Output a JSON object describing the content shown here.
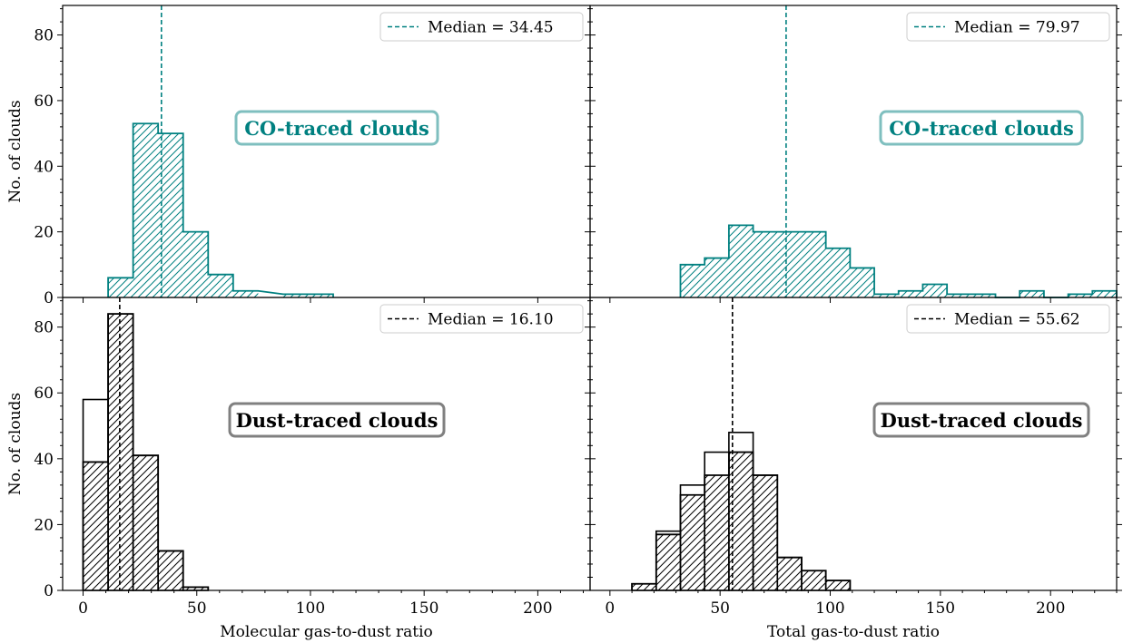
{
  "colors": {
    "teal": "#008080",
    "teal_box_edge": "#7fbfbf",
    "black": "#000000",
    "gray_box_edge": "#808080",
    "legend_edge": "#cccccc"
  },
  "chart_data": [
    {
      "id": "molecular-co",
      "type": "histogram",
      "color": "#008080",
      "hatched": true,
      "xlim": [
        -9,
        223
      ],
      "ylim": [
        0,
        89
      ],
      "xticks": [
        0,
        50,
        100,
        150,
        200
      ],
      "yticks": [
        0,
        20,
        40,
        60,
        80
      ],
      "xlabel": "",
      "ylabel": "No. of clouds",
      "grid": false,
      "legend": "Median = 34.45",
      "legend_position": "top-right",
      "median": 34.45,
      "annotation": "CO-traced clouds",
      "bins": [
        {
          "x0": 11,
          "x1": 22,
          "count": 6
        },
        {
          "x0": 22,
          "x1": 33,
          "count": 53
        },
        {
          "x0": 33,
          "x1": 44,
          "count": 50
        },
        {
          "x0": 44,
          "x1": 55,
          "count": 20
        },
        {
          "x0": 55,
          "x1": 66,
          "count": 7
        },
        {
          "x0": 66,
          "x1": 77,
          "count": 2
        },
        {
          "x0": 88,
          "x1": 99,
          "count": 1
        },
        {
          "x0": 99,
          "x1": 110,
          "count": 1
        }
      ]
    },
    {
      "id": "total-co",
      "type": "histogram",
      "color": "#008080",
      "hatched": true,
      "xlim": [
        -9,
        230
      ],
      "ylim": [
        0,
        89
      ],
      "xticks": [
        0,
        50,
        100,
        150,
        200
      ],
      "yticks": [
        0,
        20,
        40,
        60,
        80
      ],
      "xlabel": "",
      "ylabel": "",
      "grid": false,
      "legend": "Median = 79.97",
      "legend_position": "top-right",
      "median": 79.97,
      "annotation": "CO-traced clouds",
      "bins": [
        {
          "x0": 32,
          "x1": 43,
          "count": 10
        },
        {
          "x0": 43,
          "x1": 54,
          "count": 12
        },
        {
          "x0": 54,
          "x1": 65,
          "count": 22
        },
        {
          "x0": 65,
          "x1": 76,
          "count": 20
        },
        {
          "x0": 76,
          "x1": 87,
          "count": 20
        },
        {
          "x0": 87,
          "x1": 98,
          "count": 20
        },
        {
          "x0": 98,
          "x1": 109,
          "count": 15
        },
        {
          "x0": 109,
          "x1": 120,
          "count": 9
        },
        {
          "x0": 120,
          "x1": 131,
          "count": 1
        },
        {
          "x0": 131,
          "x1": 142,
          "count": 2
        },
        {
          "x0": 142,
          "x1": 153,
          "count": 4
        },
        {
          "x0": 153,
          "x1": 164,
          "count": 1
        },
        {
          "x0": 164,
          "x1": 175,
          "count": 1
        },
        {
          "x0": 175,
          "x1": 186,
          "count": 0
        },
        {
          "x0": 186,
          "x1": 197,
          "count": 2
        },
        {
          "x0": 197,
          "x1": 208,
          "count": 0
        },
        {
          "x0": 208,
          "x1": 219,
          "count": 1
        },
        {
          "x0": 219,
          "x1": 230,
          "count": 2
        }
      ]
    },
    {
      "id": "molecular-dust",
      "type": "histogram",
      "color": "#000000",
      "hatched": true,
      "xlim": [
        -9,
        223
      ],
      "ylim": [
        0,
        89
      ],
      "xticks": [
        0,
        50,
        100,
        150,
        200
      ],
      "yticks": [
        0,
        20,
        40,
        60,
        80
      ],
      "xlabel": "Molecular gas-to-dust ratio",
      "ylabel": "No. of clouds",
      "grid": false,
      "legend": "Median = 16.10",
      "legend_position": "top-right",
      "median": 16.1,
      "annotation": "Dust-traced clouds",
      "bins": [
        {
          "x0": 0,
          "x1": 11,
          "count": 39
        },
        {
          "x0": 11,
          "x1": 22,
          "count": 84
        },
        {
          "x0": 22,
          "x1": 33,
          "count": 41
        },
        {
          "x0": 33,
          "x1": 44,
          "count": 12
        },
        {
          "x0": 44,
          "x1": 55,
          "count": 1
        }
      ],
      "outline_bins": [
        {
          "x0": 0,
          "x1": 11,
          "count": 58
        },
        {
          "x0": 11,
          "x1": 22,
          "count": 84
        },
        {
          "x0": 22,
          "x1": 33,
          "count": 41
        },
        {
          "x0": 33,
          "x1": 44,
          "count": 12
        },
        {
          "x0": 44,
          "x1": 55,
          "count": 1
        }
      ]
    },
    {
      "id": "total-dust",
      "type": "histogram",
      "color": "#000000",
      "hatched": true,
      "xlim": [
        -9,
        230
      ],
      "ylim": [
        0,
        89
      ],
      "xticks": [
        0,
        50,
        100,
        150,
        200
      ],
      "yticks": [
        0,
        20,
        40,
        60,
        80
      ],
      "xlabel": "Total gas-to-dust ratio",
      "ylabel": "",
      "grid": false,
      "legend": "Median = 55.62",
      "legend_position": "top-right",
      "median": 55.62,
      "annotation": "Dust-traced clouds",
      "bins": [
        {
          "x0": 10,
          "x1": 21,
          "count": 2
        },
        {
          "x0": 21,
          "x1": 32,
          "count": 17
        },
        {
          "x0": 32,
          "x1": 43,
          "count": 29
        },
        {
          "x0": 43,
          "x1": 54,
          "count": 35
        },
        {
          "x0": 54,
          "x1": 65,
          "count": 42
        },
        {
          "x0": 65,
          "x1": 76,
          "count": 35
        },
        {
          "x0": 76,
          "x1": 87,
          "count": 10
        },
        {
          "x0": 87,
          "x1": 98,
          "count": 6
        },
        {
          "x0": 98,
          "x1": 109,
          "count": 3
        }
      ],
      "outline_bins": [
        {
          "x0": 10,
          "x1": 21,
          "count": 2
        },
        {
          "x0": 21,
          "x1": 32,
          "count": 18
        },
        {
          "x0": 32,
          "x1": 43,
          "count": 32
        },
        {
          "x0": 43,
          "x1": 54,
          "count": 42
        },
        {
          "x0": 54,
          "x1": 65,
          "count": 48
        },
        {
          "x0": 65,
          "x1": 76,
          "count": 35
        },
        {
          "x0": 76,
          "x1": 87,
          "count": 10
        },
        {
          "x0": 87,
          "x1": 98,
          "count": 6
        },
        {
          "x0": 98,
          "x1": 109,
          "count": 3
        }
      ]
    }
  ]
}
